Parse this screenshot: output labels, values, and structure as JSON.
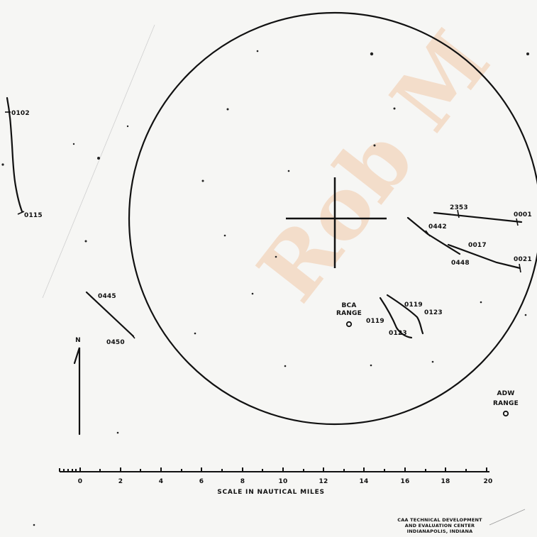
{
  "watermark": "Rob M",
  "track_labels": {
    "t0102": "0102",
    "t0115": "0115",
    "t0445": "0445",
    "t0450": "0450",
    "t2353": "2353",
    "t0001": "0001",
    "t0442": "0442",
    "t0017": "0017",
    "t0448": "0448",
    "t0021": "0021",
    "t0119a": "0119",
    "t0123a": "0123",
    "t0119b": "0119",
    "t0123b": "0123"
  },
  "ranges": {
    "bca_line1": "BCA",
    "bca_line2": "RANGE",
    "adw_line1": "ADW",
    "adw_line2": "RANGE"
  },
  "north_label": "N",
  "scale": {
    "title": "SCALE IN NAUTICAL MILES",
    "ticks": [
      "0",
      "2",
      "4",
      "6",
      "8",
      "10",
      "12",
      "14",
      "16",
      "18",
      "20"
    ]
  },
  "credit": {
    "line1": "CAA TECHNICAL DEVELOPMENT",
    "line2": "AND EVALUATION CENTER",
    "line3": "INDIANAPOLIS, INDIANA"
  }
}
